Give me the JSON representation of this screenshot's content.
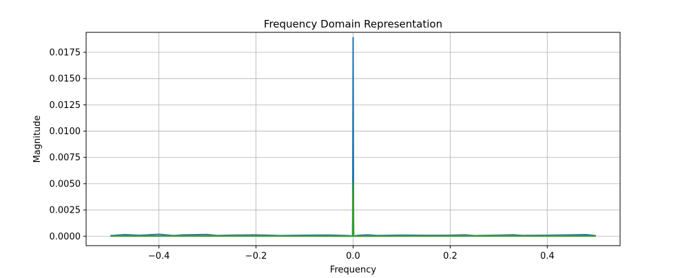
{
  "chart_data": {
    "type": "line",
    "title": "Frequency Domain Representation",
    "xlabel": "Frequency",
    "ylabel": "Magnitude",
    "xlim": [
      -0.55,
      0.55
    ],
    "ylim": [
      -0.0009,
      0.0194
    ],
    "x_ticks": [
      -0.4,
      -0.2,
      0.0,
      0.2,
      0.4
    ],
    "x_tick_labels": [
      "−0.4",
      "−0.2",
      "0.0",
      "0.2",
      "0.4"
    ],
    "y_ticks": [
      0.0,
      0.0025,
      0.005,
      0.0075,
      0.01,
      0.0125,
      0.015,
      0.0175
    ],
    "y_tick_labels": [
      "0.0000",
      "0.0025",
      "0.0050",
      "0.0075",
      "0.0100",
      "0.0125",
      "0.0150",
      "0.0175"
    ],
    "grid": true,
    "series": [
      {
        "color": "#1f77b4",
        "x": [
          -0.5,
          -0.47,
          -0.44,
          -0.4,
          -0.37,
          -0.35,
          -0.3,
          -0.28,
          -0.25,
          -0.2,
          -0.15,
          -0.1,
          -0.05,
          -0.01,
          -0.001,
          0.0,
          0.001,
          0.01,
          0.03,
          0.05,
          0.1,
          0.15,
          0.2,
          0.23,
          0.25,
          0.3,
          0.33,
          0.35,
          0.4,
          0.45,
          0.48,
          0.5
        ],
        "y": [
          5e-05,
          0.00015,
          8e-05,
          0.00018,
          6e-05,
          0.00012,
          0.00016,
          7e-05,
          0.0001,
          0.00012,
          6e-05,
          9e-05,
          0.00011,
          6e-05,
          2e-05,
          0.0189,
          2e-05,
          8e-05,
          0.00012,
          7e-05,
          0.0001,
          8e-05,
          9e-05,
          0.00012,
          6e-05,
          0.0001,
          0.00013,
          7e-05,
          9e-05,
          0.00012,
          0.00015,
          5e-05
        ]
      },
      {
        "color": "#ff7f0e",
        "x": [
          -0.5,
          -0.3,
          -0.1,
          -0.001,
          0.0,
          0.001,
          0.1,
          0.3,
          0.5
        ],
        "y": [
          2e-05,
          3e-05,
          2e-05,
          1e-05,
          0.0048,
          1e-05,
          2e-05,
          3e-05,
          2e-05
        ]
      },
      {
        "color": "#2ca02c",
        "x": [
          -0.5,
          -0.3,
          -0.1,
          -0.001,
          0.0,
          0.001,
          0.1,
          0.3,
          0.5
        ],
        "y": [
          1e-05,
          1e-05,
          1e-05,
          0.0,
          0.0051,
          0.0,
          1e-05,
          1e-05,
          1e-05
        ]
      }
    ]
  }
}
